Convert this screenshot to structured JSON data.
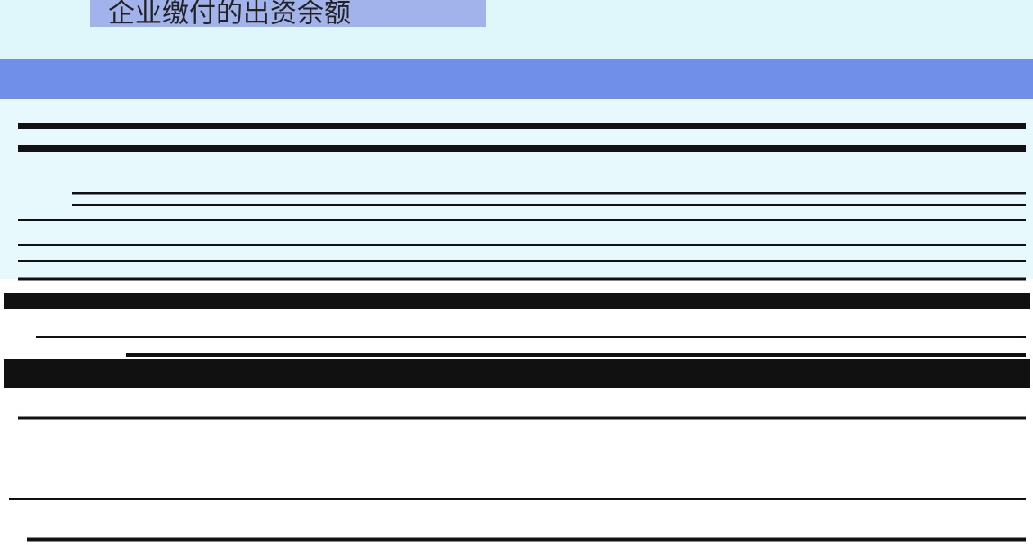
{
  "header": {
    "title": "企业缴付的出资余额"
  }
}
